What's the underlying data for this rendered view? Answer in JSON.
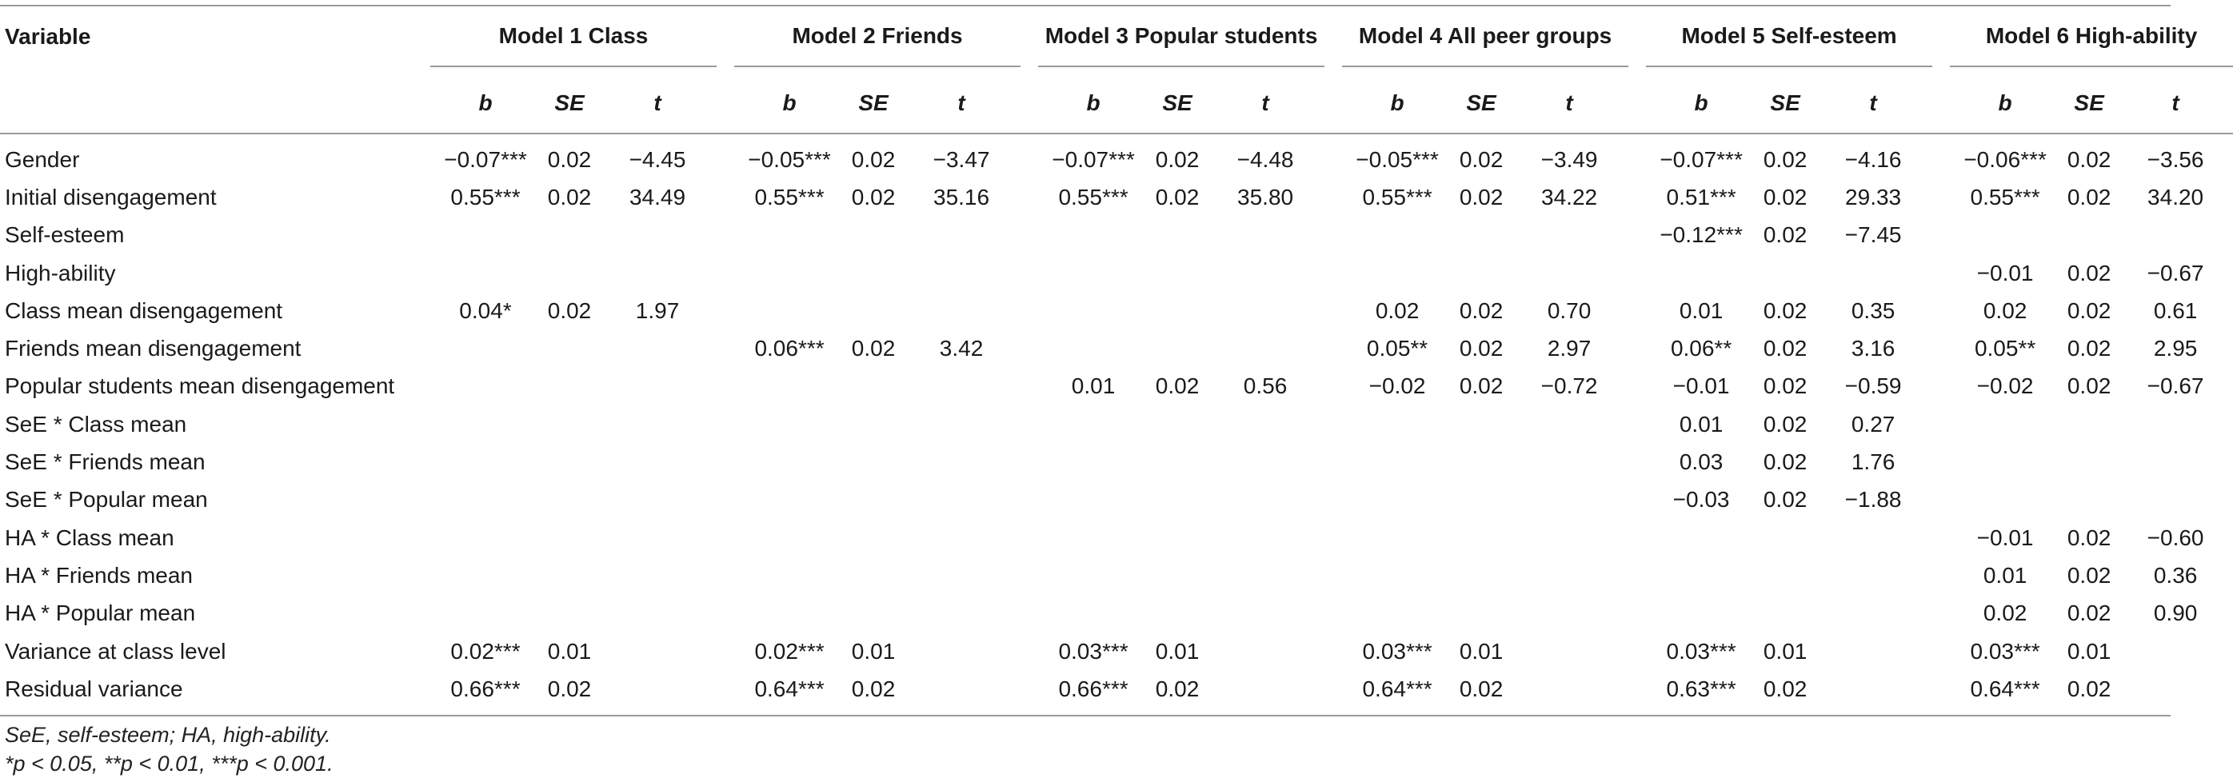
{
  "header": {
    "variable": "Variable",
    "models": [
      "Model 1 Class",
      "Model 2 Friends",
      "Model 3 Popular students",
      "Model 4 All peer groups",
      "Model 5 Self-esteem",
      "Model 6 High-ability"
    ],
    "subcols": [
      "b",
      "SE",
      "t"
    ]
  },
  "rows": [
    {
      "label": "Gender",
      "cells": [
        "−0.07***",
        "0.02",
        "−4.45",
        "−0.05***",
        "0.02",
        "−3.47",
        "−0.07***",
        "0.02",
        "−4.48",
        "−0.05***",
        "0.02",
        "−3.49",
        "−0.07***",
        "0.02",
        "−4.16",
        "−0.06***",
        "0.02",
        "−3.56"
      ]
    },
    {
      "label": "Initial disengagement",
      "cells": [
        "0.55***",
        "0.02",
        "34.49",
        "0.55***",
        "0.02",
        "35.16",
        "0.55***",
        "0.02",
        "35.80",
        "0.55***",
        "0.02",
        "34.22",
        "0.51***",
        "0.02",
        "29.33",
        "0.55***",
        "0.02",
        "34.20"
      ]
    },
    {
      "label": "Self-esteem",
      "cells": [
        "",
        "",
        "",
        "",
        "",
        "",
        "",
        "",
        "",
        "",
        "",
        "",
        "−0.12***",
        "0.02",
        "−7.45",
        "",
        "",
        ""
      ]
    },
    {
      "label": "High-ability",
      "cells": [
        "",
        "",
        "",
        "",
        "",
        "",
        "",
        "",
        "",
        "",
        "",
        "",
        "",
        "",
        "",
        "−0.01",
        "0.02",
        "−0.67"
      ]
    },
    {
      "label": "Class mean disengagement",
      "cells": [
        "0.04*",
        "0.02",
        "1.97",
        "",
        "",
        "",
        "",
        "",
        "",
        "0.02",
        "0.02",
        "0.70",
        "0.01",
        "0.02",
        "0.35",
        "0.02",
        "0.02",
        "0.61"
      ]
    },
    {
      "label": "Friends mean disengagement",
      "cells": [
        "",
        "",
        "",
        "0.06***",
        "0.02",
        "3.42",
        "",
        "",
        "",
        "0.05**",
        "0.02",
        "2.97",
        "0.06**",
        "0.02",
        "3.16",
        "0.05**",
        "0.02",
        "2.95"
      ]
    },
    {
      "label": "Popular students mean disengagement",
      "cells": [
        "",
        "",
        "",
        "",
        "",
        "",
        "0.01",
        "0.02",
        "0.56",
        "−0.02",
        "0.02",
        "−0.72",
        "−0.01",
        "0.02",
        "−0.59",
        "−0.02",
        "0.02",
        "−0.67"
      ]
    },
    {
      "label": "SeE * Class mean",
      "cells": [
        "",
        "",
        "",
        "",
        "",
        "",
        "",
        "",
        "",
        "",
        "",
        "",
        "0.01",
        "0.02",
        "0.27",
        "",
        "",
        ""
      ]
    },
    {
      "label": "SeE * Friends mean",
      "cells": [
        "",
        "",
        "",
        "",
        "",
        "",
        "",
        "",
        "",
        "",
        "",
        "",
        "0.03",
        "0.02",
        "1.76",
        "",
        "",
        ""
      ]
    },
    {
      "label": "SeE * Popular mean",
      "cells": [
        "",
        "",
        "",
        "",
        "",
        "",
        "",
        "",
        "",
        "",
        "",
        "",
        "−0.03",
        "0.02",
        "−1.88",
        "",
        "",
        ""
      ]
    },
    {
      "label": "HA * Class mean",
      "cells": [
        "",
        "",
        "",
        "",
        "",
        "",
        "",
        "",
        "",
        "",
        "",
        "",
        "",
        "",
        "",
        "−0.01",
        "0.02",
        "−0.60"
      ]
    },
    {
      "label": "HA * Friends mean",
      "cells": [
        "",
        "",
        "",
        "",
        "",
        "",
        "",
        "",
        "",
        "",
        "",
        "",
        "",
        "",
        "",
        "0.01",
        "0.02",
        "0.36"
      ]
    },
    {
      "label": "HA * Popular mean",
      "cells": [
        "",
        "",
        "",
        "",
        "",
        "",
        "",
        "",
        "",
        "",
        "",
        "",
        "",
        "",
        "",
        "0.02",
        "0.02",
        "0.90"
      ]
    },
    {
      "label": "Variance at class level",
      "cells": [
        "0.02***",
        "0.01",
        "",
        "0.02***",
        "0.01",
        "",
        "0.03***",
        "0.01",
        "",
        "0.03***",
        "0.01",
        "",
        "0.03***",
        "0.01",
        "",
        "0.03***",
        "0.01",
        ""
      ]
    },
    {
      "label": "Residual variance",
      "cells": [
        "0.66***",
        "0.02",
        "",
        "0.64***",
        "0.02",
        "",
        "0.66***",
        "0.02",
        "",
        "0.64***",
        "0.02",
        "",
        "0.63***",
        "0.02",
        "",
        "0.64***",
        "0.02",
        ""
      ]
    }
  ],
  "footnotes": [
    "SeE, self-esteem; HA, high-ability.",
    "*p < 0.05, **p < 0.01, ***p < 0.001."
  ]
}
